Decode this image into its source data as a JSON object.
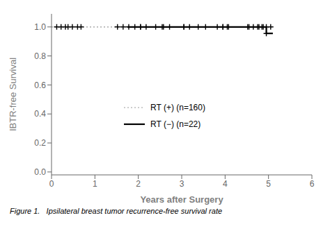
{
  "chart_data": {
    "type": "line",
    "xlabel": "Years after Surgery",
    "ylabel": "IBTR-free Survival",
    "xlim": [
      0,
      6
    ],
    "ylim": [
      -0.02,
      1.09
    ],
    "xticks": [
      0,
      1,
      2,
      3,
      4,
      5,
      6
    ],
    "yticks": [
      {
        "value": 0,
        "label": "0.0"
      },
      0.2,
      0.4,
      0.6,
      0.8,
      {
        "value": 1.0,
        "label": "1.0"
      }
    ],
    "grid": false,
    "legend": "center",
    "annotations": [
      "Figure 1.   Ipsilateral breast tumor recurrence-free survival rate"
    ],
    "series": [
      {
        "name": "RT (+) (n=160)",
        "type": "line",
        "color": "#999999",
        "line_style": "dotted",
        "x": [
          0.0,
          5.1
        ],
        "values": [
          1.0,
          1.0
        ]
      },
      {
        "type": "scatter",
        "marker": "plus",
        "color": "#000000",
        "x": [
          0.12,
          0.22,
          0.32,
          0.38,
          0.48,
          0.6,
          0.68,
          1.52,
          1.65,
          1.78,
          1.92,
          2.05,
          2.18,
          2.4,
          2.58,
          2.72,
          3.05,
          3.18,
          3.38,
          3.82,
          3.95,
          4.08,
          4.52,
          4.65,
          4.75,
          4.85,
          4.95,
          5.05
        ],
        "values": [
          1.0,
          1.0,
          1.0,
          1.0,
          1.0,
          1.0,
          1.0,
          1.0,
          1.0,
          1.0,
          1.0,
          1.0,
          1.0,
          1.0,
          1.0,
          1.0,
          1.0,
          1.0,
          1.0,
          1.0,
          1.0,
          1.0,
          1.0,
          1.0,
          1.0,
          1.0,
          1.0,
          1.0
        ]
      },
      {
        "name": "RT (−) (n=22)",
        "type": "line",
        "color": "#000000",
        "line_style": "solid",
        "x": [
          1.75,
          4.95,
          4.95,
          5.1
        ],
        "values": [
          1.0,
          1.0,
          0.955,
          0.955
        ]
      },
      {
        "type": "scatter",
        "marker": "plus",
        "color": "#000000",
        "x": [
          2.05,
          2.55,
          3.05,
          3.55,
          3.95,
          4.05,
          4.55,
          4.78,
          4.88,
          4.95
        ],
        "values": [
          1.0,
          1.0,
          1.0,
          1.0,
          1.0,
          1.0,
          1.0,
          1.0,
          1.0,
          0.955
        ]
      }
    ]
  }
}
